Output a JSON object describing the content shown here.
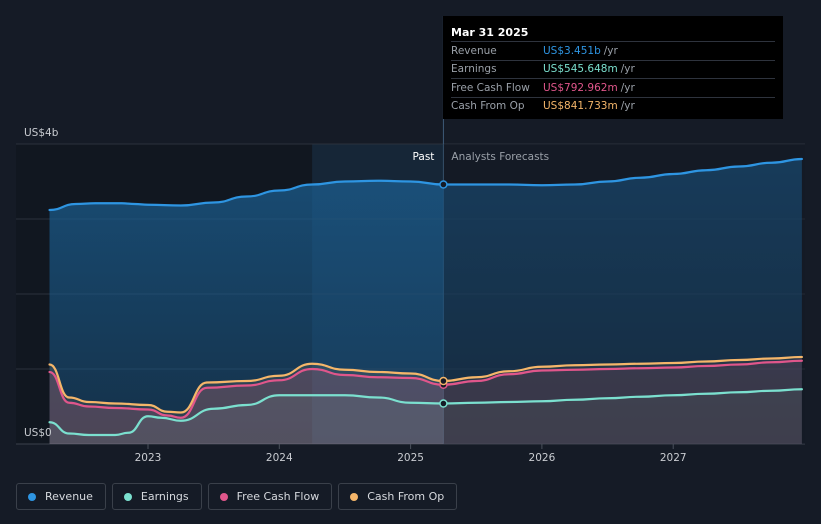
{
  "tooltip": {
    "date": "Mar 31 2025",
    "rows": [
      {
        "label": "Revenue",
        "value": "US$3.451b",
        "unit": "/yr",
        "color": "#2e95e2"
      },
      {
        "label": "Earnings",
        "value": "US$545.648m",
        "unit": "/yr",
        "color": "#7be0cf"
      },
      {
        "label": "Free Cash Flow",
        "value": "US$792.962m",
        "unit": "/yr",
        "color": "#e0568b"
      },
      {
        "label": "Cash From Op",
        "value": "US$841.733m",
        "unit": "/yr",
        "color": "#f5b66a"
      }
    ]
  },
  "labels": {
    "past": "Past",
    "forecast": "Analysts Forecasts"
  },
  "legend": [
    {
      "label": "Revenue",
      "color": "#2e95e2"
    },
    {
      "label": "Earnings",
      "color": "#7be0cf"
    },
    {
      "label": "Free Cash Flow",
      "color": "#e0568b"
    },
    {
      "label": "Cash From Op",
      "color": "#f5b66a"
    }
  ],
  "chart_data": {
    "type": "line",
    "y_unit": "US$b",
    "ylim": [
      0,
      4
    ],
    "y_tick_labels": [
      {
        "value": 4,
        "label": "US$4b"
      },
      {
        "value": 0,
        "label": "US$0"
      }
    ],
    "x_ticks": [
      {
        "value": 2023,
        "label": "2023"
      },
      {
        "value": 2024,
        "label": "2024"
      },
      {
        "value": 2025,
        "label": "2025"
      },
      {
        "value": 2026,
        "label": "2026"
      },
      {
        "value": 2027,
        "label": "2027"
      }
    ],
    "xlim": [
      2022.0,
      2028.0
    ],
    "past_end": 2025.25,
    "highlight_start": 2024.25,
    "grid": true,
    "legend_position": "bottom-left",
    "series": [
      {
        "name": "Revenue",
        "color": "#2e95e2",
        "x": [
          2022.25,
          2022.45,
          2022.6,
          2022.8,
          2022.9,
          2023.0,
          2023.25,
          2023.5,
          2023.75,
          2024.0,
          2024.25,
          2024.5,
          2024.75,
          2025.0,
          2025.25,
          2025.5,
          2025.75,
          2026.0,
          2026.25,
          2026.5,
          2026.75,
          2027.0,
          2027.25,
          2027.5,
          2027.75,
          2027.98
        ],
        "y": [
          3.12,
          3.2,
          3.21,
          3.21,
          3.2,
          3.19,
          3.18,
          3.22,
          3.3,
          3.38,
          3.46,
          3.5,
          3.51,
          3.5,
          3.46,
          3.46,
          3.46,
          3.45,
          3.46,
          3.5,
          3.55,
          3.6,
          3.65,
          3.7,
          3.75,
          3.8
        ]
      },
      {
        "name": "Earnings",
        "color": "#7be0cf",
        "x": [
          2022.25,
          2022.4,
          2022.55,
          2022.75,
          2022.85,
          2023.0,
          2023.1,
          2023.25,
          2023.5,
          2023.75,
          2024.0,
          2024.25,
          2024.5,
          2024.75,
          2025.0,
          2025.25,
          2025.5,
          2025.75,
          2026.0,
          2026.25,
          2026.5,
          2026.75,
          2027.0,
          2027.25,
          2027.5,
          2027.75,
          2027.98
        ],
        "y": [
          0.29,
          0.14,
          0.12,
          0.12,
          0.15,
          0.37,
          0.35,
          0.31,
          0.47,
          0.52,
          0.65,
          0.65,
          0.65,
          0.62,
          0.55,
          0.54,
          0.55,
          0.56,
          0.57,
          0.59,
          0.61,
          0.63,
          0.65,
          0.67,
          0.69,
          0.71,
          0.73
        ]
      },
      {
        "name": "Free Cash Flow",
        "color": "#e0568b",
        "x": [
          2022.25,
          2022.4,
          2022.55,
          2022.75,
          2023.0,
          2023.15,
          2023.25,
          2023.45,
          2023.75,
          2024.0,
          2024.25,
          2024.5,
          2024.75,
          2025.0,
          2025.25,
          2025.5,
          2025.75,
          2026.0,
          2026.25,
          2026.5,
          2026.75,
          2027.0,
          2027.25,
          2027.5,
          2027.75,
          2027.98
        ],
        "y": [
          0.96,
          0.55,
          0.5,
          0.48,
          0.46,
          0.38,
          0.35,
          0.75,
          0.78,
          0.85,
          1.0,
          0.92,
          0.89,
          0.88,
          0.79,
          0.84,
          0.93,
          0.98,
          0.99,
          1.0,
          1.01,
          1.02,
          1.04,
          1.06,
          1.09,
          1.11
        ]
      },
      {
        "name": "Cash From Op",
        "color": "#f5b66a",
        "x": [
          2022.25,
          2022.4,
          2022.55,
          2022.75,
          2023.0,
          2023.15,
          2023.25,
          2023.45,
          2023.75,
          2024.0,
          2024.25,
          2024.5,
          2024.75,
          2025.0,
          2025.25,
          2025.5,
          2025.75,
          2026.0,
          2026.25,
          2026.5,
          2026.75,
          2027.0,
          2027.25,
          2027.5,
          2027.75,
          2027.98
        ],
        "y": [
          1.06,
          0.62,
          0.56,
          0.54,
          0.52,
          0.43,
          0.42,
          0.82,
          0.84,
          0.91,
          1.07,
          0.99,
          0.96,
          0.94,
          0.84,
          0.89,
          0.97,
          1.03,
          1.05,
          1.06,
          1.07,
          1.08,
          1.1,
          1.12,
          1.14,
          1.16
        ]
      }
    ]
  }
}
